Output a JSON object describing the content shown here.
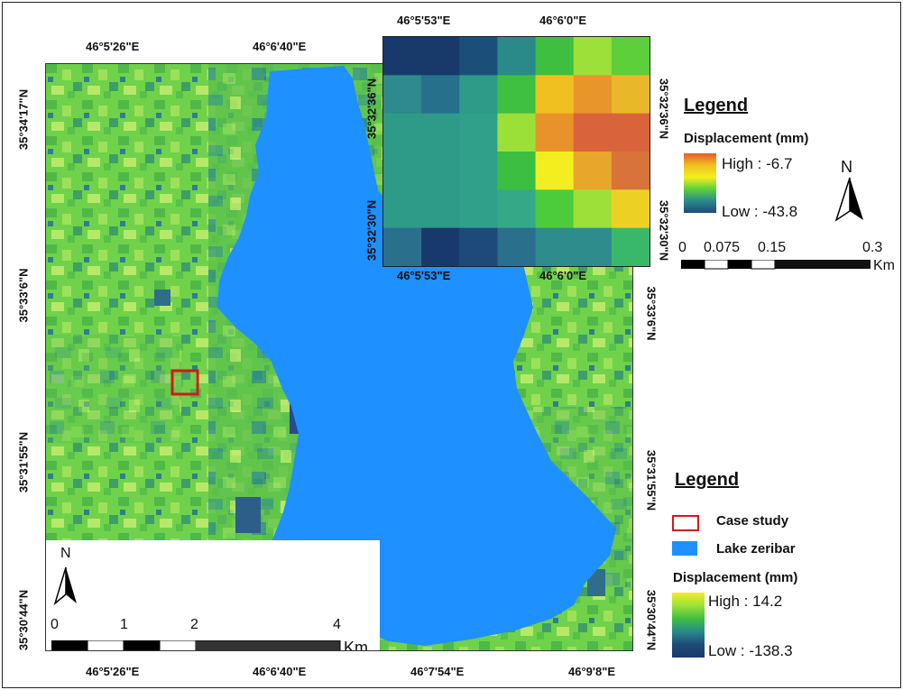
{
  "main_map": {
    "top_ticks": [
      "46°5'26\"E",
      "46°6'40\"E"
    ],
    "bottom_ticks": [
      "46°5'26\"E",
      "46°6'40\"E",
      "46°7'54\"E",
      "46°9'8\"E"
    ],
    "left_ticks": [
      "35°34'17\"N",
      "35°33'6\"N",
      "35°31'55\"N",
      "35°30'44\"N"
    ],
    "right_ticks": [
      "35°33'6\"N",
      "35°31'55\"N",
      "35°30'44\"N"
    ],
    "scalebar": {
      "labels": [
        "0",
        "1",
        "2",
        "4"
      ],
      "unit": "Km"
    },
    "north_label": "N",
    "colors": {
      "lake": "#1e90ff",
      "case_box": "#d11a1a"
    }
  },
  "inset_map": {
    "top_ticks": [
      "46°5'53\"E",
      "46°6'0\"E"
    ],
    "bottom_ticks": [
      "46°5'53\"E",
      "46°6'0\"E"
    ],
    "left_ticks": [
      "35°32'36\"N",
      "35°32'30\"N"
    ],
    "right_ticks": [
      "35°32'36\"N",
      "35°32'30\"N"
    ],
    "grid_colors": [
      [
        "#173a6b",
        "#173a6b",
        "#1b4f7a",
        "#2a8a8a",
        "#3fbf3f",
        "#9ee03a",
        "#5ccf3a"
      ],
      [
        "#2e8a8c",
        "#26708c",
        "#2e9a88",
        "#40c040",
        "#f0c020",
        "#e8962a",
        "#e8b82a"
      ],
      [
        "#2e9a88",
        "#2e9a88",
        "#30a08a",
        "#9ae038",
        "#e8922a",
        "#d9633a",
        "#d9633a"
      ],
      [
        "#2e9a88",
        "#2e9a88",
        "#30a08a",
        "#3cbf40",
        "#f4ee20",
        "#e8a62a",
        "#d8743a"
      ],
      [
        "#2e9a88",
        "#2e9a88",
        "#30a08a",
        "#35a888",
        "#4ccc3c",
        "#9ee03a",
        "#ecd024"
      ],
      [
        "#2a6f8c",
        "#173a6b",
        "#1e4a7a",
        "#2a6f8c",
        "#2e8c8c",
        "#2e8c8c",
        "#3ab86a"
      ]
    ],
    "legend": {
      "title": "Legend",
      "subtitle": "Displacement (mm)",
      "high": "High : -6.7",
      "low": "Low : -43.8"
    },
    "scalebar": {
      "labels": [
        "0",
        "0.075",
        "0.15",
        "0.3"
      ],
      "unit": "Km"
    },
    "north_label": "N"
  },
  "main_legend": {
    "title": "Legend",
    "items": [
      {
        "label": "Case study"
      },
      {
        "label": "Lake zeribar"
      }
    ],
    "subtitle": "Displacement (mm)",
    "high": "High : 14.2",
    "low": "Low : -138.3"
  }
}
